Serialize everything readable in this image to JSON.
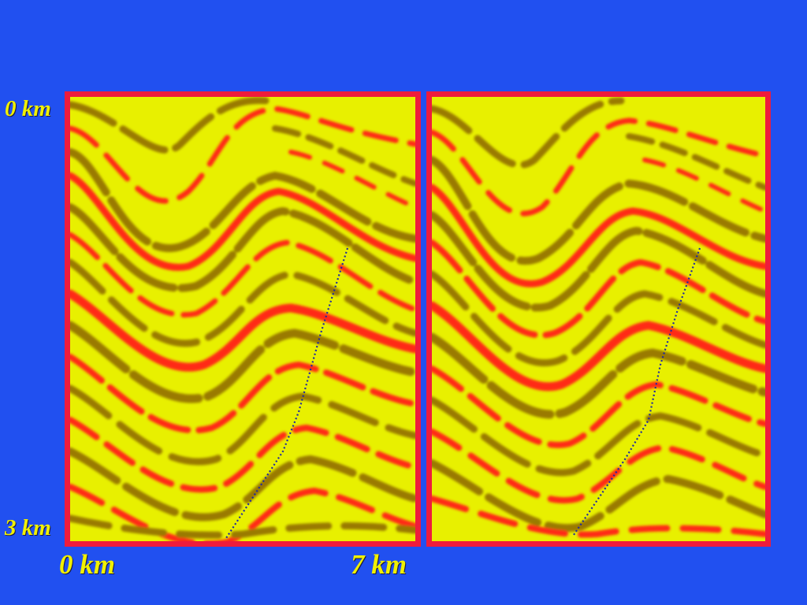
{
  "axis": {
    "depth_top": "0  km",
    "depth_bottom": "3 km",
    "distance_left": "0  km",
    "distance_right": "7 km"
  },
  "colors": {
    "background": "#2150f0",
    "frame": "#ee1c3c",
    "label": "#f0f000",
    "fault_line": "#1f2aa0",
    "seismic_base": "#e8f000",
    "seismic_trough": "#9a7a00",
    "seismic_peak": "#ff2a12"
  },
  "panels": [
    {
      "name": "seismic-section-left"
    },
    {
      "name": "seismic-section-right"
    }
  ]
}
